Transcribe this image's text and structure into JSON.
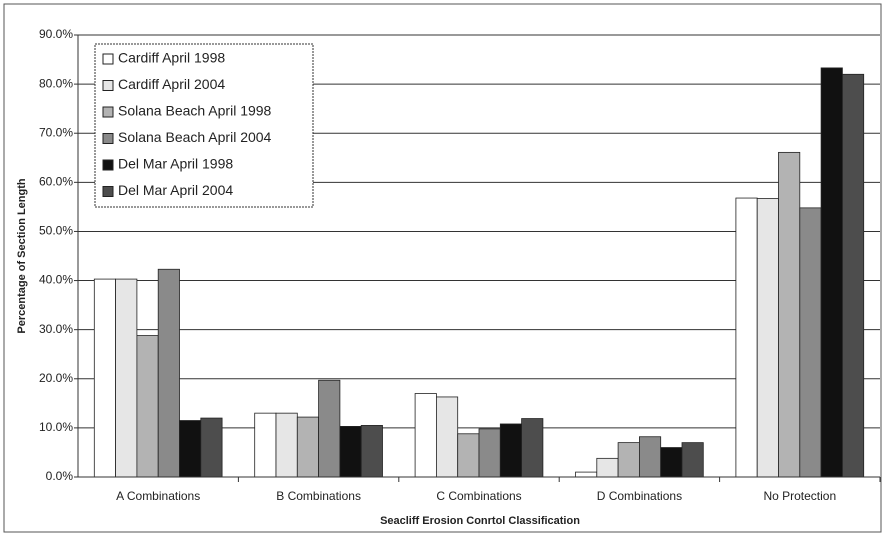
{
  "chart_data": {
    "type": "bar",
    "x_label": "Seacliff Erosion Conrtol Classification",
    "y_label": "Percentage of Section Length",
    "categories": [
      "A Combinations",
      "B Combinations",
      "C Combinations",
      "D Combinations",
      "No Protection"
    ],
    "series": [
      {
        "name": "Cardiff April 1998",
        "color": "#ffffff",
        "values": [
          40.3,
          13.0,
          17.0,
          1.0,
          56.8
        ]
      },
      {
        "name": "Cardiff April 2004",
        "color": "#e6e6e6",
        "values": [
          40.3,
          13.0,
          16.3,
          3.8,
          56.7
        ]
      },
      {
        "name": "Solana Beach April 1998",
        "color": "#b3b3b3",
        "values": [
          28.8,
          12.2,
          8.8,
          7.0,
          66.1
        ]
      },
      {
        "name": "Solana Beach April 2004",
        "color": "#8a8a8a",
        "values": [
          42.3,
          19.7,
          9.8,
          8.2,
          54.8
        ]
      },
      {
        "name": "Del Mar April 1998",
        "color": "#111111",
        "values": [
          11.5,
          10.3,
          10.8,
          6.0,
          83.3
        ]
      },
      {
        "name": "Del Mar April 2004",
        "color": "#4d4d4d",
        "values": [
          12.0,
          10.5,
          11.9,
          7.0,
          82.0
        ]
      }
    ],
    "ylim": [
      0,
      90
    ],
    "yticks": [
      {
        "value": 0,
        "label": "0.0%"
      },
      {
        "value": 10,
        "label": "10.0%"
      },
      {
        "value": 20,
        "label": "20.0%"
      },
      {
        "value": 30,
        "label": "30.0%"
      },
      {
        "value": 40,
        "label": "40.0%"
      },
      {
        "value": 50,
        "label": "50.0%"
      },
      {
        "value": 60,
        "label": "60.0%"
      },
      {
        "value": 70,
        "label": "70.0%"
      },
      {
        "value": 80,
        "label": "80.0%"
      },
      {
        "value": 90,
        "label": "90.0%"
      }
    ],
    "grid": true,
    "legend": "upper left"
  }
}
